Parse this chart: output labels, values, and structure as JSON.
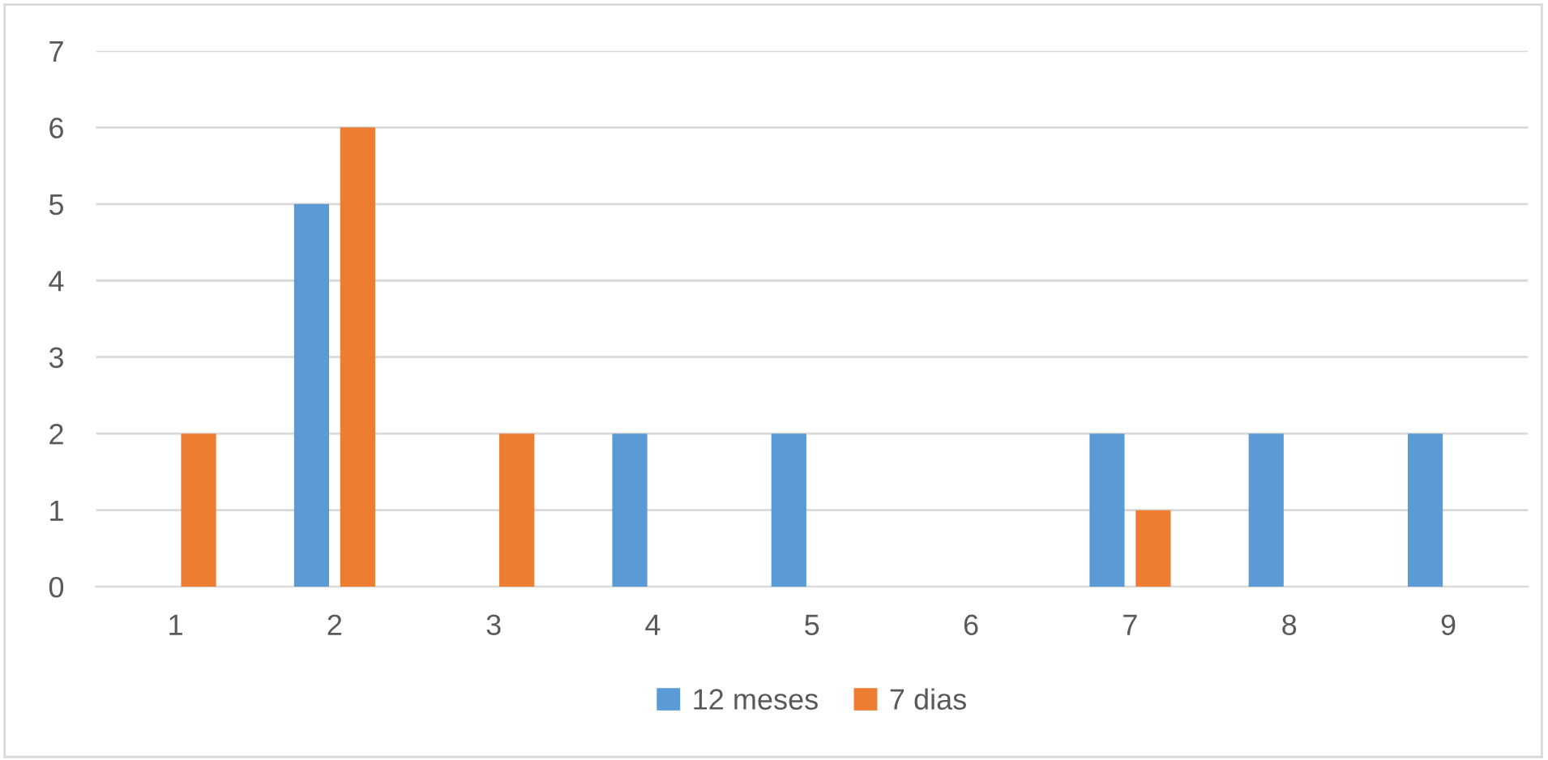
{
  "chart_data": {
    "type": "bar",
    "categories": [
      "1",
      "2",
      "3",
      "4",
      "5",
      "6",
      "7",
      "8",
      "9"
    ],
    "series": [
      {
        "name": "12 meses",
        "color": "#5b9bd5",
        "values": [
          0,
          5,
          0,
          2,
          2,
          0,
          2,
          2,
          2
        ]
      },
      {
        "name": "7 dias",
        "color": "#ed7d31",
        "values": [
          2,
          6,
          2,
          0,
          0,
          0,
          1,
          0,
          0
        ]
      }
    ],
    "ylim": [
      0,
      7
    ],
    "yticks": [
      0,
      1,
      2,
      3,
      4,
      5,
      6,
      7
    ],
    "grid": "y",
    "legend": "bottom"
  }
}
